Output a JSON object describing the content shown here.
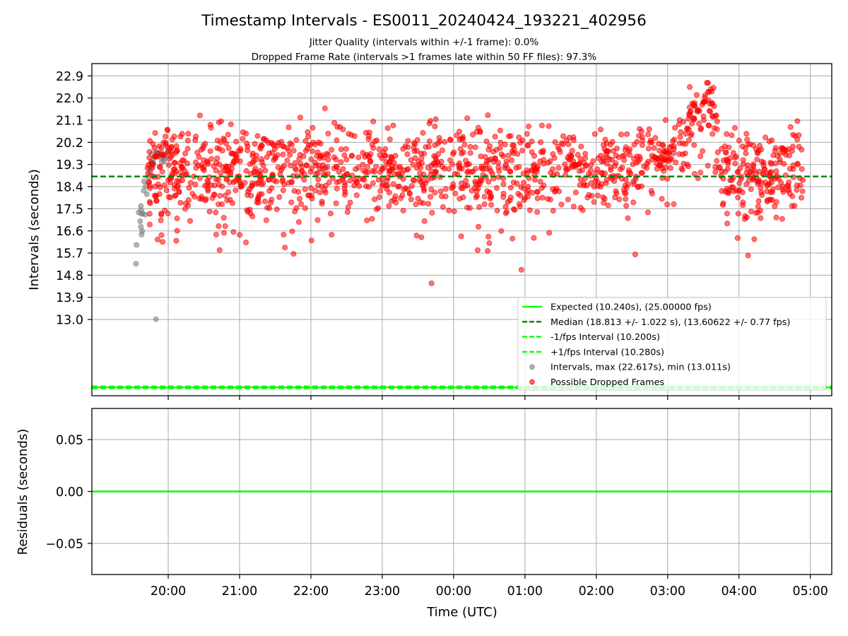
{
  "chart_data": [
    {
      "type": "scatter",
      "title": "Timestamp Intervals - ES0011_20240424_193221_402956",
      "subtitle_1": "Jitter Quality (intervals within +/-1 frame): 0.0%",
      "subtitle_2": "Dropped Frame Rate (intervals >1 frames late within 50 FF files): 97.3%",
      "ylabel": "Intervals (seconds)",
      "x_ticks": [
        "20:00",
        "21:00",
        "22:00",
        "23:00",
        "00:00",
        "01:00",
        "02:00",
        "03:00",
        "04:00",
        "05:00"
      ],
      "x_range_hours_after_1900_UTC": [
        -0.07,
        10.3
      ],
      "y_ticks": [
        "22.9",
        "22.0",
        "21.1",
        "20.2",
        "19.3",
        "18.4",
        "17.5",
        "16.6",
        "15.7",
        "14.8",
        "13.9",
        "13.0"
      ],
      "ylim": [
        9.9,
        23.4
      ],
      "grid": true,
      "legend_position": "lower right",
      "lines": {
        "expected": {
          "value": 10.24,
          "label": "Expected (10.240s), (25.00000 fps)",
          "color": "#00ff00",
          "style": "solid"
        },
        "median": {
          "value": 18.813,
          "label": "Median (18.813 +/- 1.022 s), (13.60622 +/- 0.77 fps)",
          "color": "#008000",
          "style": "dashed"
        },
        "minus_fps": {
          "value": 10.2,
          "label": "-1/fps Interval (10.200s)",
          "color": "#00ff00",
          "style": "dashed"
        },
        "plus_fps": {
          "value": 10.28,
          "label": "+1/fps Interval (10.280s)",
          "color": "#00ff00",
          "style": "dashed"
        }
      },
      "series": [
        {
          "name": "Intervals, max (22.617s), min (13.011s)",
          "color": "#808080",
          "max": 22.617,
          "min": 13.011,
          "time_span_hours": [
            0.5,
            1.0
          ]
        },
        {
          "name": "Possible Dropped Frames",
          "color": "#ff0000",
          "time_span_hours": [
            0.7,
            9.9
          ]
        }
      ],
      "colors": {
        "expected": "#00ff00",
        "median": "#008000",
        "intervals": "#808080",
        "dropped": "#ff0000"
      }
    },
    {
      "type": "line",
      "xlabel": "Time (UTC)",
      "ylabel": "Residuals (seconds)",
      "y_ticks": [
        "0.05",
        "0.00",
        "−0.05"
      ],
      "ylim": [
        -0.08,
        0.08
      ],
      "grid": true,
      "series": [
        {
          "values": [
            0.0,
            0.0
          ],
          "color": "#00ff00"
        }
      ]
    }
  ]
}
